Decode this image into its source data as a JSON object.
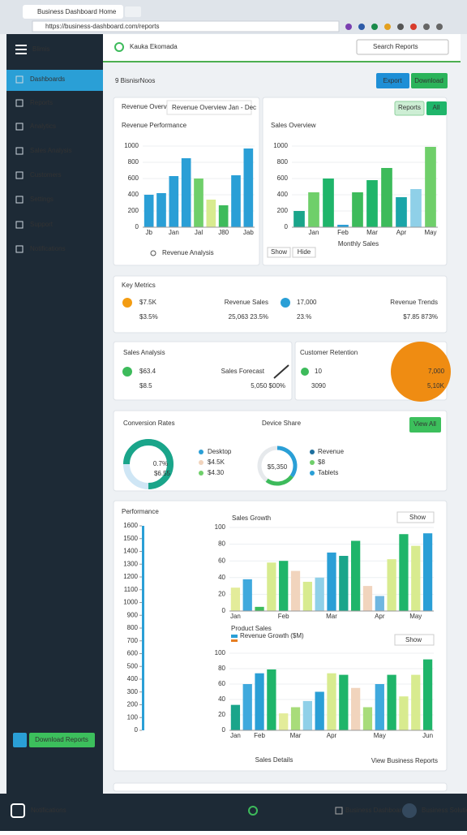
{
  "browser": {
    "tab": "Business Dashboard Home",
    "url": "https://business-dashboard.com/reports"
  },
  "sidebar": {
    "brand": "Blimis",
    "items": [
      "Dashboards",
      "Reports",
      "Analytics",
      "Sales Analysis",
      "Customers",
      "Settings",
      "Support",
      "Notifications"
    ],
    "button": "Download Reports"
  },
  "header": {
    "logo": "Kauka Ekomada",
    "search": "Search Reports"
  },
  "page": {
    "title": "9 BisnisrNoos",
    "buttons": [
      "Export",
      "Download"
    ]
  },
  "chart1": {
    "title": "Revenue Overview",
    "tab": "Revenue Overview Jan - Dec",
    "subtitle": "Revenue Performance",
    "footer": "Revenue Analysis",
    "ylim": [
      0,
      1000
    ],
    "yticks": [
      0,
      200,
      400,
      600,
      800,
      1000
    ],
    "categories": [
      "Jb",
      null,
      "Jan",
      null,
      "Jal",
      null,
      "J80",
      null,
      "Jab"
    ],
    "values": [
      400,
      420,
      630,
      850,
      600,
      340,
      270,
      640,
      970
    ],
    "colors": [
      "#2a9fd6",
      "#2a9fd6",
      "#2a9fd6",
      "#2a9fd6",
      "#6fcf6a",
      "#d8eb8f",
      "#3dbb5b",
      "#2a9fd6",
      "#2a9fd6"
    ]
  },
  "chart2": {
    "title": "Sales Overview",
    "buttons": [
      "Reports",
      "All"
    ],
    "subtitle": "Monthly Sales",
    "footer_buttons": [
      "Show",
      "Hide"
    ],
    "ylim": [
      0,
      1000
    ],
    "yticks": [
      0,
      200,
      400,
      600,
      800,
      1000
    ],
    "categories": [
      null,
      "Jan",
      null,
      "Feb",
      null,
      "Mar",
      null,
      "Apr",
      null,
      "May"
    ],
    "values": [
      200,
      430,
      600,
      30,
      430,
      580,
      730,
      370,
      470,
      990
    ],
    "colors": [
      "#1aa58a",
      "#6fcf6a",
      "#1fb56a",
      "#2a9fd6",
      "#3dbb5b",
      "#1fb56a",
      "#3dbb5b",
      "#1aa5a8",
      "#8fd0e8",
      "#6fcf6a"
    ]
  },
  "metrics": {
    "title": "Key Metrics",
    "items": [
      {
        "value": "$7.5K",
        "change": "$3.5%",
        "caption": "Revenue Sales",
        "detail": "25,063 23.5%"
      },
      {
        "value": "17,000",
        "change": "23.%",
        "caption": "Revenue Trends",
        "detail": "$7.85 873%"
      }
    ]
  },
  "sales": {
    "title": "Sales Analysis",
    "value": "$63.4",
    "change": "$8.5",
    "caption": "Sales Forecast",
    "detail": "5,050 $00%"
  },
  "retention": {
    "title": "Customer Retention",
    "value": "10",
    "change": "3090",
    "badge": "7,000",
    "badge_sub": "5,10K"
  },
  "conversion": {
    "title": "Conversion Rates",
    "title2": "Device Share",
    "button": "View All",
    "donut1": {
      "value": 75,
      "label": "0.7%",
      "sub": "$6.55",
      "legend": [
        "Desktop",
        "$4.5K",
        "$4.30"
      ]
    },
    "donut2": {
      "values": [
        35,
        25,
        40
      ],
      "colors": [
        "#2a9fd6",
        "#3dbb5b",
        "#e6e9ec"
      ],
      "label": "$5,350",
      "legend": [
        "Revenue",
        "$8",
        "Tablets"
      ]
    }
  },
  "performance": {
    "title": "Performance",
    "scale": [
      1600,
      1500,
      1400,
      1300,
      1200,
      1100,
      1000,
      900,
      800,
      700,
      600,
      500,
      400,
      300,
      200,
      100,
      0
    ],
    "footer": "Sales Details",
    "link": "View Business Reports",
    "chartA": {
      "title": "Sales Growth",
      "dropdown": "Show",
      "ylim": [
        0,
        100
      ],
      "yticks": [
        0,
        20,
        40,
        60,
        80,
        100
      ],
      "categories": [
        "Jan",
        null,
        null,
        null,
        "Feb",
        null,
        null,
        null,
        "Mar",
        null,
        null,
        null,
        "Apr",
        null,
        null,
        "May",
        null
      ],
      "values": [
        28,
        38,
        5,
        58,
        60,
        48,
        35,
        40,
        70,
        66,
        84,
        30,
        18,
        62,
        92,
        78,
        93
      ],
      "colors": [
        "#e3ec9a",
        "#3fa9dd",
        "#3dbb5b",
        "#d8eb8f",
        "#1fb56a",
        "#f1d4bd",
        "#d8eb8f",
        "#8fd0e8",
        "#2a9fd6",
        "#1aa58a",
        "#1fb56a",
        "#f1d4bd",
        "#6fb6e0",
        "#d8eb8f",
        "#1fb56a",
        "#d8eb8f",
        "#2a9fd6"
      ]
    },
    "chartB": {
      "title": "Product Sales",
      "legend": "Revenue Growth ($M)",
      "dropdown": "Show",
      "ylim": [
        0,
        100
      ],
      "yticks": [
        0,
        20,
        40,
        60,
        80,
        100
      ],
      "categories": [
        "Jan",
        null,
        "Feb",
        null,
        null,
        "Mar",
        null,
        null,
        "Apr",
        null,
        null,
        null,
        "May",
        null,
        null,
        null,
        "Jun"
      ],
      "values": [
        33,
        60,
        74,
        79,
        22,
        30,
        38,
        50,
        74,
        72,
        55,
        30,
        60,
        72,
        44,
        72,
        92
      ],
      "colors": [
        "#1aa58a",
        "#3fa9dd",
        "#2a9fd6",
        "#1fb56a",
        "#e3ec9a",
        "#a8dc7a",
        "#8fd0e8",
        "#2a9fd6",
        "#d8eb8f",
        "#1fb56a",
        "#f1d4bd",
        "#a8dc7a",
        "#3fa9dd",
        "#1fb56a",
        "#d8eb8f",
        "#d8eb8f",
        "#1fb56a"
      ]
    }
  },
  "bottom": {
    "brand": "Notifications",
    "center": "Business Dashboard",
    "right": "Business Solutions"
  }
}
